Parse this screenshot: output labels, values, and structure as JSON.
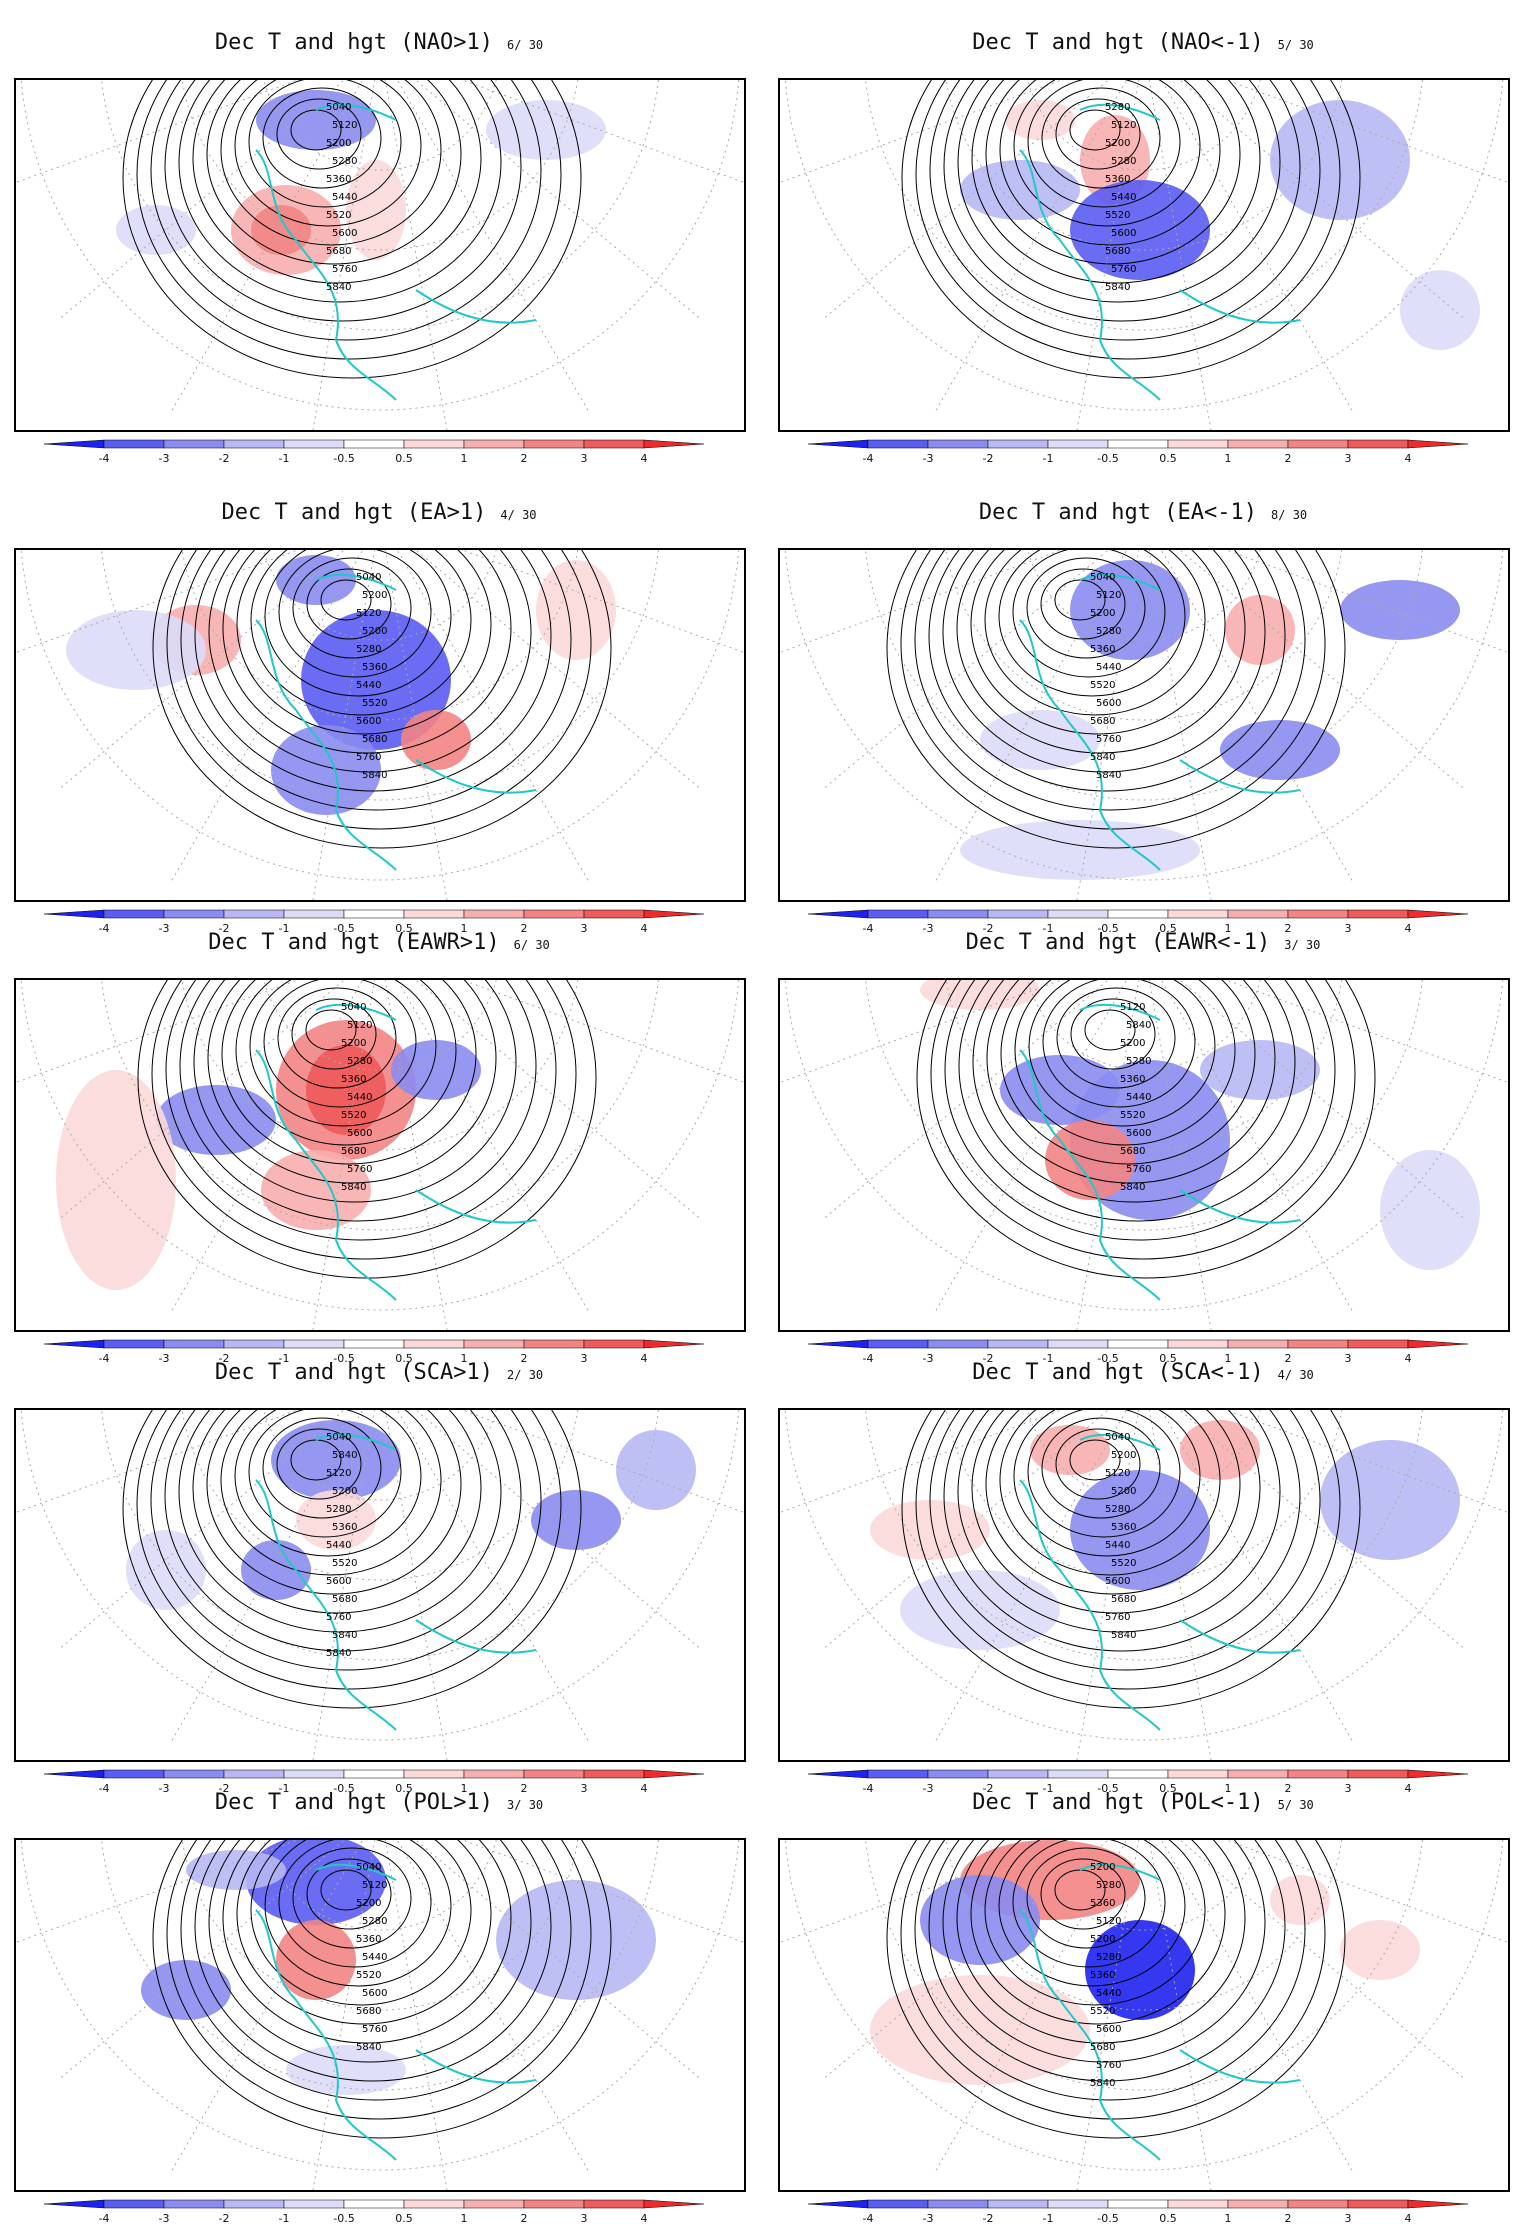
{
  "colorbar": {
    "ticks": [
      "-4",
      "-3",
      "-2",
      "-1",
      "-0.5",
      "0.5",
      "1",
      "2",
      "3",
      "4"
    ],
    "colors": [
      "#1e22f0",
      "#5a5cf2",
      "#8a8cf0",
      "#b7b8f4",
      "#dcdcf8",
      "#ffffff",
      "#fbd9d9",
      "#f7aeae",
      "#f38484",
      "#ef5a5a",
      "#f02a2a"
    ]
  },
  "panels": [
    {
      "title": "Dec T and hgt (NAO>1)",
      "count": "6/ 30",
      "labels": [
        "5040",
        "5120",
        "5200",
        "5280",
        "5360",
        "5440",
        "5520",
        "5600",
        "5680",
        "5760",
        "5840"
      ]
    },
    {
      "title": "Dec T and hgt (NAO<-1)",
      "count": "5/ 30",
      "labels": [
        "5280",
        "5120",
        "5200",
        "5280",
        "5360",
        "5440",
        "5520",
        "5600",
        "5680",
        "5760",
        "5840"
      ]
    },
    {
      "title": "Dec T and hgt (EA>1)",
      "count": "4/ 30",
      "labels": [
        "5040",
        "5200",
        "5120",
        "5200",
        "5280",
        "5360",
        "5440",
        "5520",
        "5600",
        "5680",
        "5760",
        "5840"
      ]
    },
    {
      "title": "Dec T and hgt (EA<-1)",
      "count": "8/ 30",
      "labels": [
        "5040",
        "5120",
        "5200",
        "5280",
        "5360",
        "5440",
        "5520",
        "5600",
        "5680",
        "5760",
        "5840",
        "5840"
      ]
    },
    {
      "title": "Dec T and hgt (EAWR>1)",
      "count": "6/ 30",
      "labels": [
        "5040",
        "5120",
        "5200",
        "5280",
        "5360",
        "5440",
        "5520",
        "5600",
        "5680",
        "5760",
        "5840"
      ]
    },
    {
      "title": "Dec T and hgt (EAWR<-1)",
      "count": "3/ 30",
      "labels": [
        "5120",
        "5840",
        "5200",
        "5280",
        "5360",
        "5440",
        "5520",
        "5600",
        "5680",
        "5760",
        "5840"
      ]
    },
    {
      "title": "Dec T and hgt (SCA>1)",
      "count": "2/ 30",
      "labels": [
        "5040",
        "5840",
        "5120",
        "5200",
        "5280",
        "5360",
        "5440",
        "5520",
        "5600",
        "5680",
        "5760",
        "5840",
        "5840"
      ]
    },
    {
      "title": "Dec T and hgt (SCA<-1)",
      "count": "4/ 30",
      "labels": [
        "5040",
        "5200",
        "5120",
        "5200",
        "5280",
        "5360",
        "5440",
        "5520",
        "5600",
        "5680",
        "5760",
        "5840"
      ]
    },
    {
      "title": "Dec T and hgt (POL>1)",
      "count": "3/ 30",
      "labels": [
        "5040",
        "5120",
        "5200",
        "5280",
        "5360",
        "5440",
        "5520",
        "5600",
        "5680",
        "5760",
        "5840"
      ]
    },
    {
      "title": "Dec T and hgt (POL<-1)",
      "count": "5/ 30",
      "labels": [
        "5200",
        "5280",
        "5360",
        "5120",
        "5200",
        "5280",
        "5360",
        "5440",
        "5520",
        "5600",
        "5680",
        "5760",
        "5840"
      ]
    }
  ]
}
